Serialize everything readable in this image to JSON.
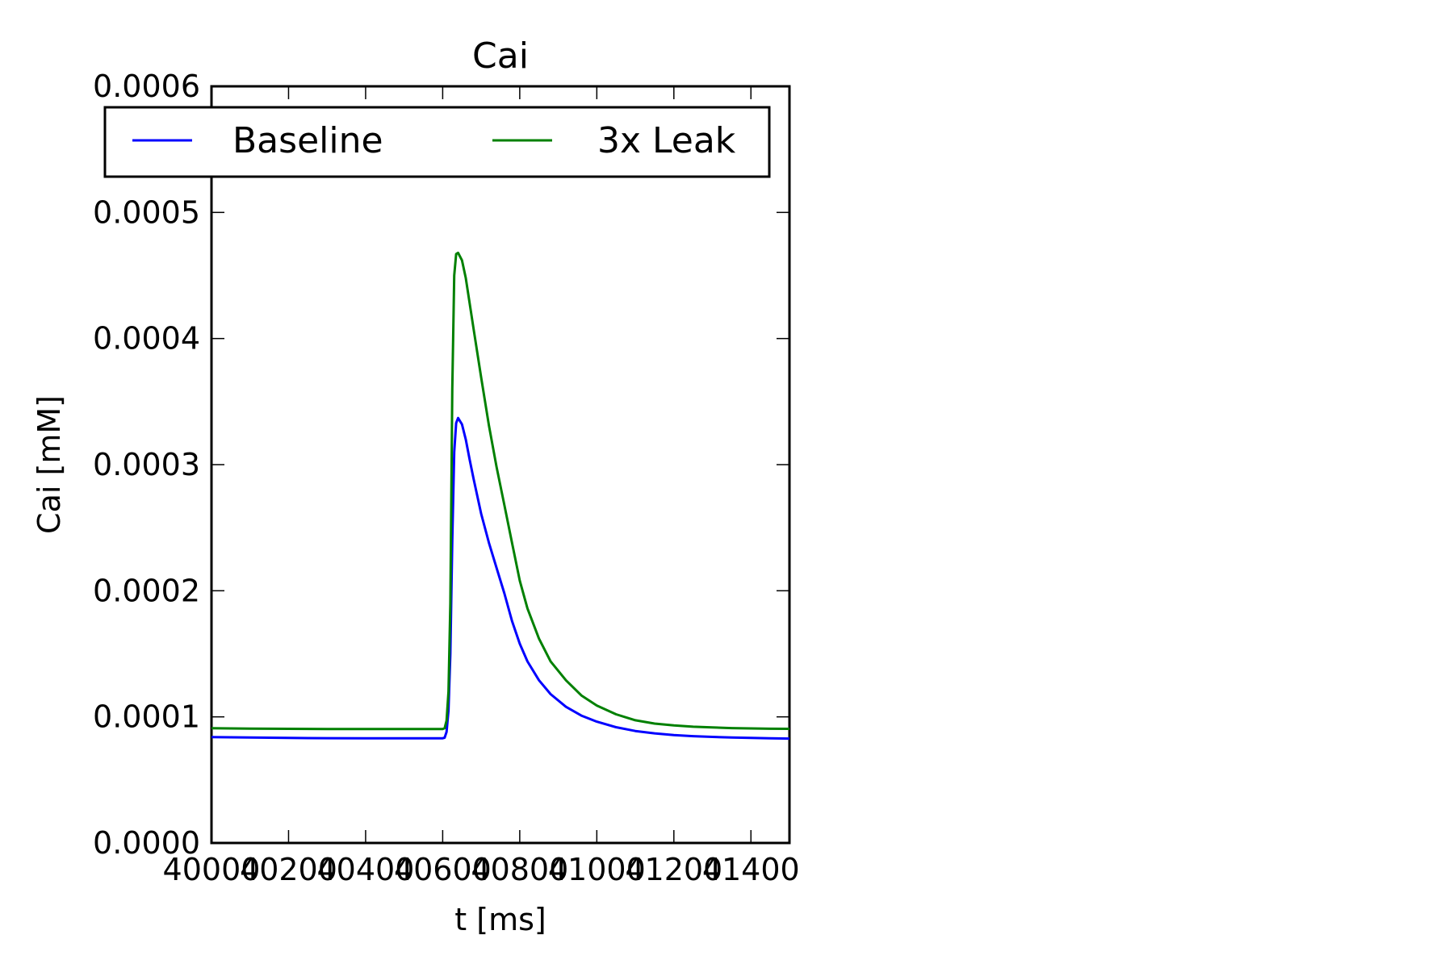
{
  "chart_data": {
    "type": "line",
    "title": "Cai",
    "xlabel": "t [ms]",
    "ylabel": "Cai [mM]",
    "xlim": [
      40000,
      41500
    ],
    "ylim": [
      0,
      0.0006
    ],
    "grid": false,
    "legend_position": "top",
    "x_tick_labels": [
      "40000",
      "40200",
      "40400",
      "40600",
      "40800",
      "41000",
      "41200",
      "41400"
    ],
    "x_tick_values": [
      40000,
      40200,
      40400,
      40600,
      40800,
      41000,
      41200,
      41400
    ],
    "y_tick_labels": [
      "0.0000",
      "0.0001",
      "0.0002",
      "0.0003",
      "0.0004",
      "0.0005",
      "0.0006"
    ],
    "y_tick_values": [
      0,
      0.0001,
      0.0002,
      0.0003,
      0.0004,
      0.0005,
      0.0006
    ],
    "series": [
      {
        "name": "Baseline",
        "color": "#0000ff",
        "x": [
          40000,
          40100,
          40200,
          40300,
          40400,
          40500,
          40600,
          40605,
          40610,
          40615,
          40620,
          40625,
          40630,
          40635,
          40640,
          40650,
          40660,
          40670,
          40680,
          40700,
          40720,
          40740,
          40760,
          40780,
          40800,
          40820,
          40850,
          40880,
          40920,
          40960,
          41000,
          41050,
          41100,
          41150,
          41200,
          41250,
          41300,
          41350,
          41400,
          41450,
          41500
        ],
        "y": [
          8.4e-05,
          8.36e-05,
          8.33e-05,
          8.31e-05,
          8.3e-05,
          8.3e-05,
          8.3e-05,
          8.35e-05,
          8.8e-05,
          0.000105,
          0.00015,
          0.00024,
          0.00031,
          0.000333,
          0.000337,
          0.000332,
          0.00032,
          0.000304,
          0.000289,
          0.000261,
          0.000238,
          0.000218,
          0.000198,
          0.000176,
          0.000158,
          0.000144,
          0.000129,
          0.000118,
          0.000108,
          0.000101,
          9.62e-05,
          9.18e-05,
          8.88e-05,
          8.69e-05,
          8.56e-05,
          8.47e-05,
          8.41e-05,
          8.36e-05,
          8.33e-05,
          8.3e-05,
          8.28e-05
        ]
      },
      {
        "name": "3x Leak",
        "color": "#008000",
        "x": [
          40000,
          40100,
          40200,
          40300,
          40400,
          40500,
          40600,
          40605,
          40610,
          40615,
          40620,
          40625,
          40630,
          40635,
          40640,
          40650,
          40660,
          40670,
          40680,
          40700,
          40720,
          40740,
          40760,
          40780,
          40800,
          40820,
          40850,
          40880,
          40920,
          40960,
          41000,
          41050,
          41100,
          41150,
          41200,
          41250,
          41300,
          41350,
          41400,
          41450,
          41500
        ],
        "y": [
          9.1e-05,
          9.07e-05,
          9.05e-05,
          9.04e-05,
          9.04e-05,
          9.04e-05,
          9.04e-05,
          9.1e-05,
          9.7e-05,
          0.00012,
          0.00019,
          0.00036,
          0.00045,
          0.000467,
          0.000468,
          0.000462,
          0.000448,
          0.000428,
          0.000408,
          0.000369,
          0.000331,
          0.000298,
          0.000268,
          0.000238,
          0.000208,
          0.000186,
          0.000162,
          0.000144,
          0.000129,
          0.000117,
          0.000109,
          0.000102,
          9.73e-05,
          9.47e-05,
          9.32e-05,
          9.22e-05,
          9.16e-05,
          9.11e-05,
          9.08e-05,
          9.06e-05,
          9.05e-05
        ]
      }
    ]
  }
}
